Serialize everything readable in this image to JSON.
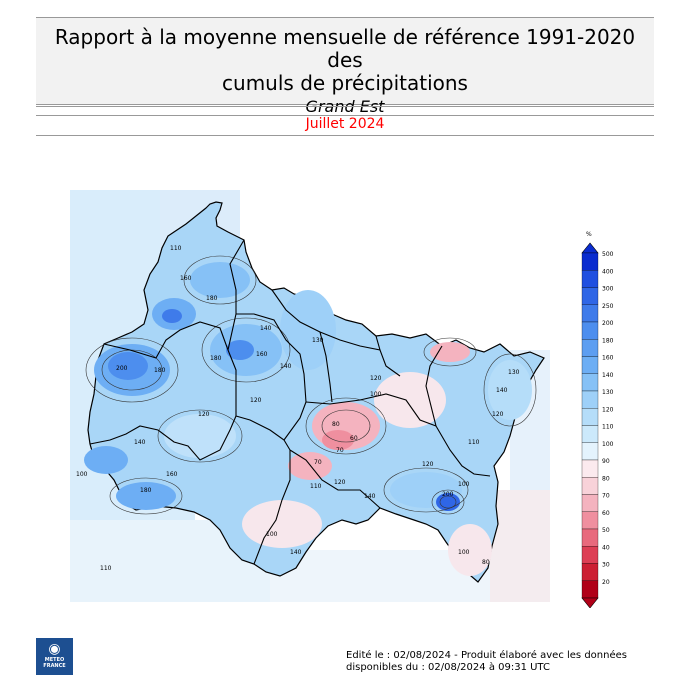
{
  "header": {
    "title_line1": "Rapport à la moyenne mensuelle de référence 1991-2020 des",
    "title_line2": "cumuls de précipitations",
    "region": "Grand Est",
    "period": "Juillet 2024"
  },
  "legend": {
    "unit": "%",
    "levels": [
      {
        "label": "500",
        "color": "#0a2ccf"
      },
      {
        "label": "400",
        "color": "#1f4fe0"
      },
      {
        "label": "300",
        "color": "#2f66e6"
      },
      {
        "label": "250",
        "color": "#3f7bea"
      },
      {
        "label": "200",
        "color": "#4d8eee"
      },
      {
        "label": "180",
        "color": "#5d9ef1"
      },
      {
        "label": "160",
        "color": "#6daef4"
      },
      {
        "label": "140",
        "color": "#86c1f6"
      },
      {
        "label": "130",
        "color": "#9ed0f8"
      },
      {
        "label": "120",
        "color": "#b5ddf9"
      },
      {
        "label": "110",
        "color": "#cce9fb"
      },
      {
        "label": "100",
        "color": "#e4f3fd"
      },
      {
        "label": "90",
        "color": "#fbeaee"
      },
      {
        "label": "80",
        "color": "#f8d2d9"
      },
      {
        "label": "70",
        "color": "#f4b3bf"
      },
      {
        "label": "60",
        "color": "#ef8f9f"
      },
      {
        "label": "50",
        "color": "#e86a7d"
      },
      {
        "label": "40",
        "color": "#dd3f55"
      },
      {
        "label": "30",
        "color": "#cc1f33"
      },
      {
        "label": "20",
        "color": "#b00018"
      }
    ]
  },
  "map_labels": [
    "110",
    "160",
    "180",
    "180",
    "200",
    "140",
    "160",
    "180",
    "120",
    "140",
    "130",
    "120",
    "80",
    "70",
    "60",
    "70",
    "110",
    "120",
    "140",
    "120",
    "100",
    "100",
    "140",
    "130",
    "120",
    "140",
    "110",
    "200",
    "100",
    "100",
    "80",
    "110",
    "140",
    "160",
    "180",
    "120",
    "100"
  ],
  "footer": {
    "logo_line1": "METEO",
    "logo_line2": "FRANCE",
    "edited_line1": "Edité le : 02/08/2024 - Produit élaboré avec les données",
    "edited_line2": "disponibles du : 02/08/2024 à 09:31 UTC"
  }
}
